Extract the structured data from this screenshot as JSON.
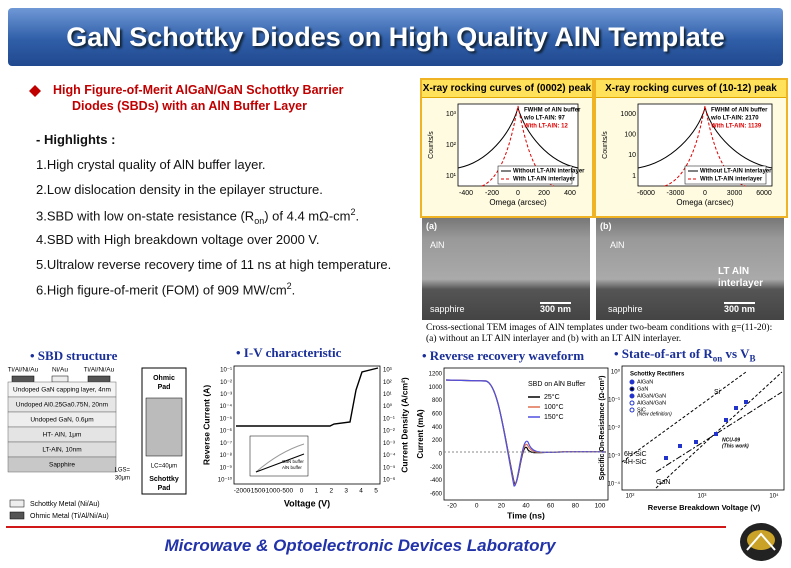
{
  "header": {
    "title": "GaN Schottky Diodes on High Quality AlN Template"
  },
  "intro": {
    "lines": [
      "High Figure-of-Merit AlGaN/GaN Schottky Barrier",
      "Diodes (SBDs) with an AlN Buffer Layer"
    ]
  },
  "highlights": {
    "heading": "- Highlights :",
    "items": [
      [
        "1.High crystal quality of AlN buffer layer."
      ],
      [
        "2.Low dislocation  density in the epilayer structure."
      ],
      [
        "3.SBD with low on-state resistance (R",
        "on",
        ") of 4.4 mΩ-cm",
        "2",
        "."
      ],
      [
        "4.SBD with High breakdown voltage over 2000 V."
      ],
      [
        "5.Ultralow reverse recovery time of 11 ns at high temperature."
      ],
      [
        "6.High figure-of-merit (FOM) of 909 MW/cm",
        "2",
        "."
      ]
    ]
  },
  "xray": [
    {
      "title": "X-ray rocking curves of (0002) peak",
      "fwhm": [
        "FWHM of AlN buffer",
        "w/o LT-AlN: 97",
        "With LT-AlN: 12"
      ],
      "legend": [
        "Without LT-AlN interlayer",
        "With LT-AlN interlayer"
      ],
      "xlabel": "Omega (arcsec)",
      "ylabel": "Counts/s",
      "xticks": [
        "-400",
        "-200",
        "0",
        "200",
        "400"
      ],
      "yticks": [
        "10³",
        "10²",
        "10¹"
      ]
    },
    {
      "title": "X-ray rocking curves of (10-12) peak",
      "fwhm": [
        "FWHM of AlN buffer",
        "w/o LT-AlN: 2170",
        "With LT-AlN: 1139"
      ],
      "legend": [
        "Without LT-AlN interlayer",
        "With LT-AlN interlayer"
      ],
      "xlabel": "Omega (arcsec)",
      "ylabel": "Counts/s",
      "xticks": [
        "-6000",
        "-3000",
        "0",
        "3000",
        "6000"
      ],
      "yticks": [
        "1000",
        "100",
        "10",
        "1"
      ]
    }
  ],
  "tem": [
    {
      "label": "(a)",
      "layer": "AlN",
      "substrate": "sapphire",
      "scale": "300 nm"
    },
    {
      "label": "(b)",
      "layer": "AlN",
      "interlayer": [
        "LT AlN",
        "interlayer"
      ],
      "substrate": "sapphire",
      "scale": "300 nm"
    }
  ],
  "caption": [
    "Cross-sectional TEM images of AlN templates under two-beam conditions with g=(11-20):",
    "(a) without an LT AlN interlayer and (b) with an LT AlN interlayer."
  ],
  "sbd": {
    "title": "• SBD structure",
    "contacts": [
      "Ti/Al/Ni/Au",
      "Ni/Au",
      "Ti/Al/Ni/Au"
    ],
    "layers": [
      "Undoped GaN capping layer, 4nm",
      "Undoped Al0.25Ga0.75N, 20nm",
      "Undoped GaN, 0.6μm",
      "HT- AlN, 1μm",
      "LT-AlN, 10nm",
      "Sapphire"
    ],
    "ohmic_pad": [
      "Ohmic",
      "Pad"
    ],
    "schottky_pad": [
      "Schottky",
      "Pad"
    ],
    "dims": [
      "LGS=",
      "30μm",
      "LC=40μm"
    ],
    "legend": [
      "Schottky Metal (Ni/Au)",
      "Ohmic Metal (Ti/Al/Ni/Au)"
    ]
  },
  "iv": {
    "title": "• I-V characteristic",
    "ylabel": "Reverse Current (A)",
    "y2label": "Current Density (A/cm²)",
    "xlabel": "Voltage (V)",
    "xticks": [
      "-2000",
      "-1500",
      "-1000",
      "-500",
      "0",
      "1",
      "2",
      "3",
      "4",
      "5"
    ],
    "yticks": [
      "10⁻¹",
      "10⁻²",
      "10⁻³",
      "10⁻⁴",
      "10⁻⁵",
      "10⁻⁶",
      "10⁻⁷",
      "10⁻⁸",
      "10⁻⁹",
      "10⁻¹⁰"
    ],
    "y2ticks": [
      "10³",
      "10²",
      "10¹",
      "10⁰",
      "10⁻¹",
      "10⁻²",
      "10⁻³",
      "10⁻⁴",
      "10⁻⁵",
      "10⁻⁶"
    ],
    "inset_legend": [
      "GaN buffer",
      "AlN buffer"
    ]
  },
  "rr": {
    "title": "• Reverse recovery waveform",
    "legend_title": "SBD on AlN Buffer",
    "series": [
      "25°C",
      "100°C",
      "150°C"
    ],
    "ylabel": "Current (mA)",
    "xlabel": "Time (ns)",
    "xticks": [
      "-20",
      "0",
      "20",
      "40",
      "60",
      "80",
      "100"
    ],
    "yticks": [
      "1200",
      "1000",
      "800",
      "600",
      "400",
      "200",
      "0",
      "-200",
      "-400",
      "-600"
    ]
  },
  "soa": {
    "title": [
      "• State-of-art of R",
      "on",
      " vs V",
      "B"
    ],
    "ylabel": "Specific On-Resistance (Ω-cm²)",
    "xlabel": "Reverse Breakdown Voltage (V)",
    "xticks": [
      "10²",
      "10³",
      "10⁴"
    ],
    "yticks": [
      "10⁰",
      "10⁻¹",
      "10⁻²",
      "10⁻³",
      "10⁻⁴"
    ],
    "legend_title": "Schottky Rectifiers",
    "legend": [
      "AlGaN",
      "GaN",
      "AlGaN/GaN",
      "AlGaN/GaN",
      "SiC"
    ],
    "new_def": "(New definition)",
    "labels": [
      "Si",
      "6H-SiC",
      "4H-SiC",
      "GaN",
      "NCU-09",
      "(This work)"
    ]
  },
  "footer": {
    "lab": "Microwave & Optoelectronic Devices Laboratory"
  }
}
